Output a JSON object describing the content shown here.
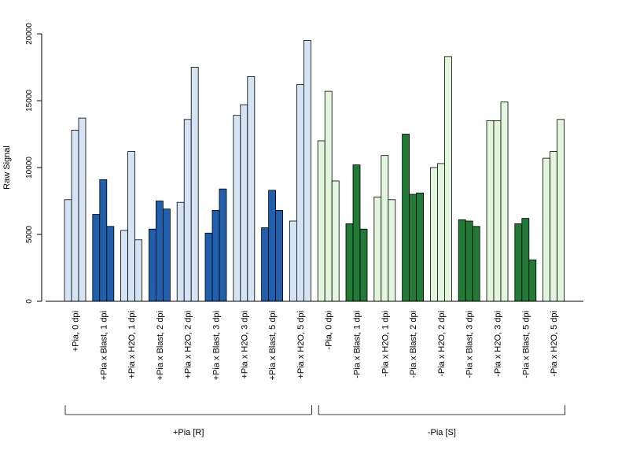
{
  "chart_data": {
    "type": "bar",
    "ylabel": "Raw Signal",
    "xlabel": "",
    "ylim": [
      0,
      20000
    ],
    "yticks": [
      0,
      5000,
      10000,
      15000,
      20000
    ],
    "ytick_labels": [
      "0",
      "5000",
      "10000",
      "15000",
      "20000"
    ],
    "grid": false,
    "legend": "none",
    "categories": [
      "+Pia, 0 dpi",
      "+Pia x Blast, 1 dpi",
      "+Pia x H2O, 1 dpi",
      "+Pia x Blast, 2 dpi",
      "+Pia x H2O, 2 dpi",
      "+Pia x Blast, 3 dpi",
      "+Pia x H2O, 3 dpi",
      "+Pia x Blast, 5 dpi",
      "+Pia x H2O, 5 dpi",
      "-Pia, 0 dpi",
      "-Pia x Blast, 1 dpi",
      "-Pia x H2O, 1 dpi",
      "-Pia x Blast, 2 dpi",
      "-Pia x H2O, 2 dpi",
      "-Pia x Blast, 3 dpi",
      "-Pia x H2O, 3 dpi",
      "-Pia x Blast, 5 dpi",
      "-Pia x H2O, 5 dpi"
    ],
    "replicates": [
      [
        7600,
        12800,
        13700
      ],
      [
        6500,
        9100,
        5600
      ],
      [
        5300,
        11200,
        4600
      ],
      [
        5400,
        7500,
        6900
      ],
      [
        7400,
        13600,
        17500
      ],
      [
        5100,
        6800,
        8400
      ],
      [
        13900,
        14700,
        16800
      ],
      [
        5500,
        8300,
        6800
      ],
      [
        6000,
        16200,
        19500
      ],
      [
        12000,
        15700,
        9000
      ],
      [
        5800,
        10200,
        5400
      ],
      [
        7800,
        10900,
        7600
      ],
      [
        12500,
        8000,
        8100
      ],
      [
        10000,
        10300,
        18300
      ],
      [
        6100,
        6000,
        5600
      ],
      [
        13500,
        13500,
        14900
      ],
      [
        5800,
        6200,
        3100
      ],
      [
        10700,
        11200,
        13600
      ]
    ],
    "bar_colors": [
      "#d4e4f5",
      "#1f5fab",
      "#d4e4f5",
      "#1f5fab",
      "#d4e4f5",
      "#1f5fab",
      "#d4e4f5",
      "#1f5fab",
      "#d4e4f5",
      "#e2f5dd",
      "#217a35",
      "#e2f5dd",
      "#217a35",
      "#e2f5dd",
      "#217a35",
      "#e2f5dd",
      "#217a35",
      "#e2f5dd"
    ],
    "groups": [
      {
        "label": "+Pia [R]",
        "first_category": 0,
        "last_category": 8
      },
      {
        "label": "-Pia [S]",
        "first_category": 9,
        "last_category": 17
      }
    ]
  }
}
